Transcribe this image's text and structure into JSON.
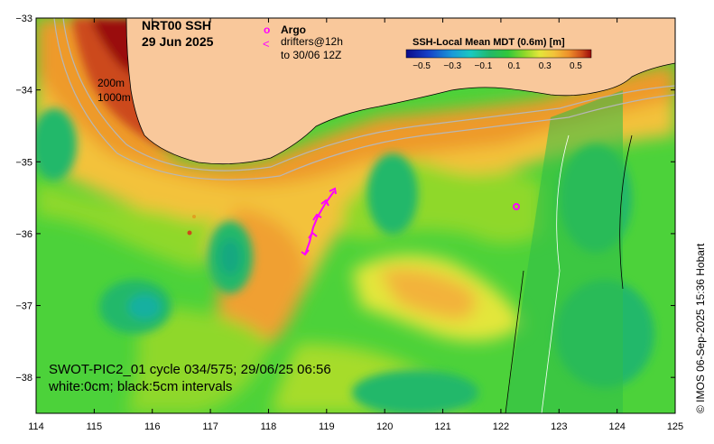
{
  "title": {
    "line1": "NRT00 SSH",
    "line2": "29 Jun 2025"
  },
  "legend": {
    "argo_symbol": "o",
    "argo_label": "Argo",
    "drifter_symbol": "<",
    "drifter_label_1": "drifters@12h",
    "drifter_label_2": "to 30/06 12Z",
    "colors": {
      "argo": "#ff00ff",
      "drifter": "#ff00ff"
    }
  },
  "isobaths": {
    "label_200": "200m",
    "label_1000": "1000m"
  },
  "colorbar": {
    "title": "SSH-Local Mean MDT (0.6m) [m]",
    "ticks": [
      "−0.5",
      "−0.3",
      "−0.1",
      "0.1",
      "0.3",
      "0.5"
    ],
    "tick_values": [
      -0.5,
      -0.3,
      -0.1,
      0.1,
      0.3,
      0.5
    ],
    "colormap": [
      "#0b0b8a",
      "#1540c8",
      "#1a9ad8",
      "#19c9c0",
      "#22b86a",
      "#31c83a",
      "#8fd82a",
      "#e3e63a",
      "#f3c23a",
      "#ee8f2a",
      "#cc4a1a",
      "#9a0a0a"
    ]
  },
  "swot_note": {
    "line1": "SWOT-PIC2_01 cycle 034/575; 29/06/25 06:56",
    "line2": "white:0cm; black:5cm intervals"
  },
  "credit": "© IMOS 06-Sep-2025 15:36 Hobart",
  "axes": {
    "x_ticks": [
      "114",
      "115",
      "116",
      "117",
      "118",
      "119",
      "120",
      "121",
      "122",
      "123",
      "124",
      "125"
    ],
    "y_ticks": [
      "−33",
      "−34",
      "−35",
      "−36",
      "−37",
      "−38"
    ],
    "x_range": [
      114,
      125
    ],
    "y_range": [
      -38.5,
      -33
    ]
  },
  "colors": {
    "land": "#f9c89b",
    "ocean_base": "#4cd23a"
  }
}
